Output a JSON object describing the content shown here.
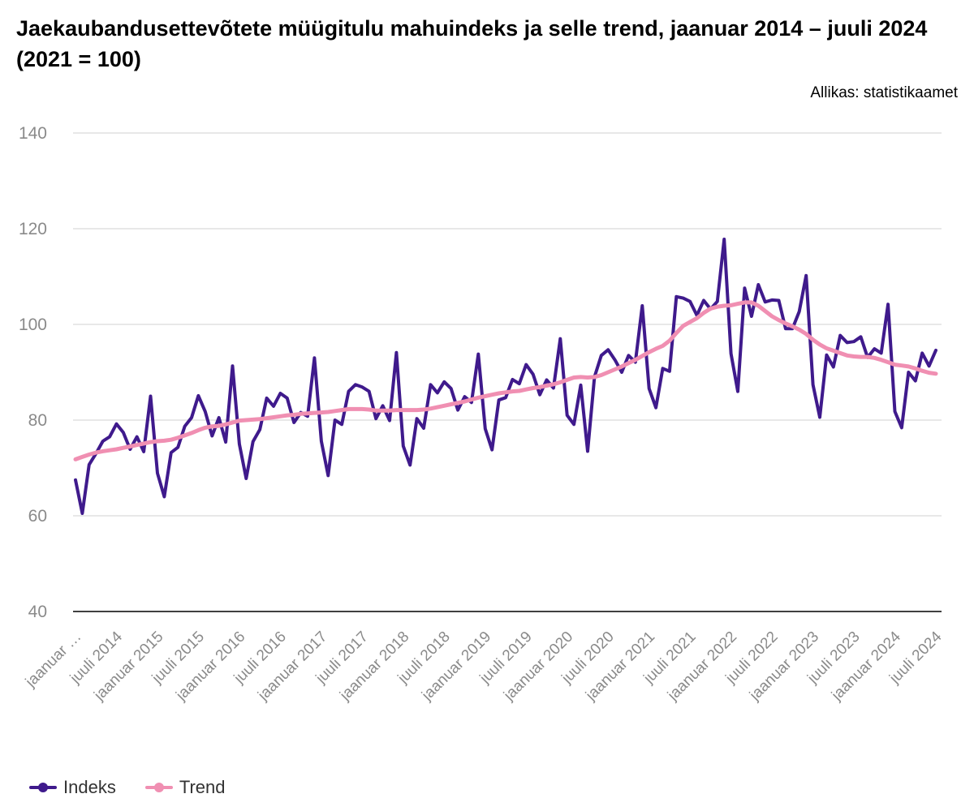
{
  "chart_data": {
    "type": "line",
    "title": "Jaekaubandusettevõtete müügitulu mahuindeks ja selle trend, jaanuar 2014 – juuli 2024 (2021 = 100)",
    "source": "Allikas: statistikaamet",
    "ylim": [
      40,
      140
    ],
    "yticks": [
      "140",
      "120",
      "100",
      "80",
      "60",
      "40"
    ],
    "grid": true,
    "legend_position": "bottom-left",
    "x_tick_labels": [
      "jaanuar …",
      "juuli 2014",
      "jaanuar 2015",
      "juuli 2015",
      "jaanuar 2016",
      "juuli 2016",
      "jaanuar 2017",
      "juuli 2017",
      "jaanuar 2018",
      "juuli 2018",
      "jaanuar 2019",
      "juuli 2019",
      "jaanuar 2020",
      "juuli 2020",
      "jaanuar 2021",
      "juuli 2021",
      "jaanuar 2022",
      "juuli 2022",
      "jaanuar 2023",
      "juuli 2023",
      "jaanuar 2024",
      "juuli 2024"
    ],
    "series": [
      {
        "name": "Indeks",
        "color": "#3f1a8c",
        "values": [
          67.5,
          60.5,
          70.7,
          73.0,
          75.6,
          76.5,
          79.2,
          77.4,
          73.9,
          76.5,
          73.4,
          85.0,
          68.9,
          64.0,
          73.2,
          74.3,
          78.7,
          80.5,
          85.1,
          81.8,
          76.7,
          80.5,
          75.4,
          91.3,
          75.0,
          67.8,
          75.5,
          78.0,
          84.6,
          82.9,
          85.6,
          84.6,
          79.5,
          81.6,
          80.8,
          93.0,
          75.6,
          68.4,
          80.0,
          79.1,
          86.0,
          87.4,
          86.9,
          86.0,
          80.3,
          83.0,
          79.9,
          94.1,
          74.6,
          70.6,
          80.3,
          78.3,
          87.4,
          85.7,
          88.0,
          86.6,
          82.1,
          84.9,
          83.7,
          93.8,
          78.2,
          73.8,
          84.2,
          84.7,
          88.5,
          87.6,
          91.6,
          89.6,
          85.3,
          88.4,
          86.7,
          97.0,
          81.0,
          79.1,
          87.3,
          73.5,
          89.0,
          93.5,
          94.7,
          92.6,
          90.0,
          93.5,
          92.1,
          103.9,
          86.6,
          82.6,
          90.8,
          90.2,
          105.8,
          105.5,
          104.8,
          101.9,
          105.0,
          103.2,
          104.8,
          117.8,
          93.9,
          86.0,
          107.6,
          101.7,
          108.3,
          104.7,
          105.1,
          105.0,
          99.1,
          99.1,
          102.7,
          110.2,
          87.4,
          80.6,
          93.6,
          91.1,
          97.7,
          96.2,
          96.4,
          97.4,
          93.1,
          94.9,
          94.0,
          104.2,
          81.8,
          78.4,
          90.0,
          88.2,
          94.0,
          91.3,
          94.6
        ]
      },
      {
        "name": "Trend",
        "color": "#f08fb2",
        "values": [
          71.8,
          72.3,
          72.8,
          73.2,
          73.5,
          73.7,
          73.9,
          74.2,
          74.5,
          74.8,
          75.1,
          75.4,
          75.6,
          75.7,
          75.9,
          76.3,
          76.8,
          77.3,
          77.9,
          78.4,
          78.7,
          78.8,
          79.1,
          79.5,
          79.9,
          80.0,
          80.1,
          80.2,
          80.4,
          80.6,
          80.8,
          81.0,
          81.1,
          81.3,
          81.4,
          81.5,
          81.6,
          81.7,
          81.9,
          82.1,
          82.3,
          82.3,
          82.3,
          82.2,
          82.0,
          82.0,
          82.0,
          82.1,
          82.1,
          82.1,
          82.1,
          82.2,
          82.4,
          82.7,
          83.0,
          83.3,
          83.6,
          83.9,
          84.3,
          84.7,
          85.0,
          85.3,
          85.6,
          85.8,
          86.0,
          86.1,
          86.4,
          86.7,
          86.9,
          87.2,
          87.5,
          87.9,
          88.4,
          88.9,
          89.0,
          88.9,
          89.0,
          89.4,
          90.0,
          90.6,
          91.2,
          91.9,
          92.6,
          93.4,
          94.2,
          94.9,
          95.5,
          96.6,
          98.2,
          99.7,
          100.5,
          101.3,
          102.4,
          103.3,
          103.7,
          103.9,
          104.0,
          104.3,
          104.6,
          104.6,
          103.9,
          102.8,
          101.7,
          100.9,
          100.2,
          99.6,
          98.9,
          98.0,
          96.8,
          95.8,
          95.0,
          94.5,
          94.0,
          93.5,
          93.3,
          93.2,
          93.2,
          93.0,
          92.6,
          92.1,
          91.6,
          91.4,
          91.2,
          90.8,
          90.3,
          89.9,
          89.7
        ]
      }
    ]
  }
}
